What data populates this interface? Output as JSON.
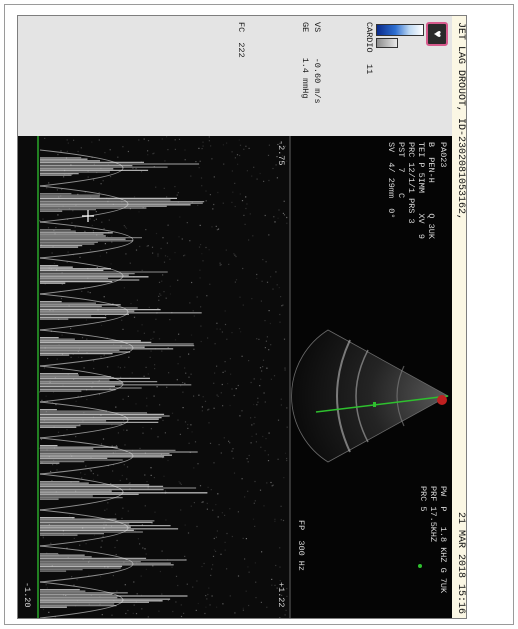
{
  "header": {
    "left": "JET LAG DROUOT, ID-2302081053162,",
    "right": "21 MAR 2018 15:16"
  },
  "side": {
    "probe": "CARDIO",
    "probe_num": "11",
    "vs": "VS     -0.60 m/s",
    "ge": "GE     1.4 mmHg",
    "fc": "FC  222"
  },
  "params": {
    "top_line": "PA023",
    "lines": [
      "B  PEN-H      Q 3UK",
      "TEI P 5IMM    XV  9",
      "PRC 12/1/1 PRS 3",
      "PST  7    C",
      "SV  4/ 29mm  0°"
    ],
    "right_lines": [
      "PW  P   1.8 KHZ G 7UK",
      "PRF 17.5KHZ",
      "PRC 5"
    ],
    "fp": "FP  300 Hz"
  },
  "doppler": {
    "scale_top": "-2.75",
    "scale_bottom": "-1.20",
    "scale_right": "+1.22"
  },
  "colors": {
    "header_bg": "#fbf7e4",
    "panel_bg": "#e4e4e4",
    "image_bg": "#050505",
    "baseline": "#2ec02e",
    "logo_border": "#d65a8c"
  }
}
